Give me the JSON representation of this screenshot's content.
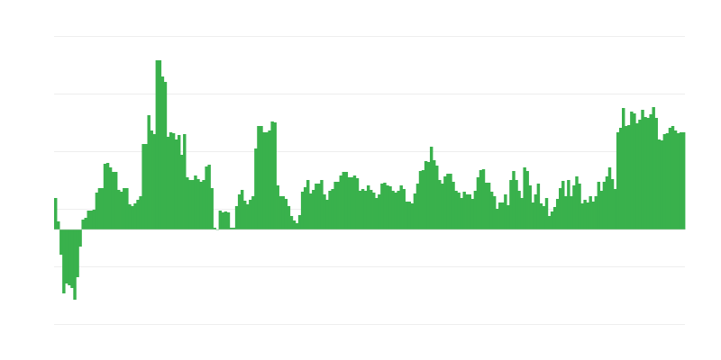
{
  "chart_data": {
    "type": "bar",
    "title": "",
    "xlabel": "",
    "ylabel": "",
    "ylim": [
      -105,
      215
    ],
    "gridlines": [
      -105,
      -41,
      23,
      87,
      151,
      215
    ],
    "grid": true,
    "legend": "none",
    "colors": {
      "bar": "#39b14c",
      "grid": "#eeeeee",
      "baseline": "#cccccc"
    },
    "values": [
      35,
      9,
      -28,
      -71,
      -60,
      -62,
      -65,
      -78,
      -53,
      -19,
      11,
      13,
      21,
      21,
      22,
      41,
      46,
      46,
      73,
      74,
      69,
      64,
      64,
      44,
      42,
      46,
      46,
      28,
      26,
      29,
      33,
      37,
      95,
      95,
      127,
      110,
      106,
      188,
      188,
      170,
      164,
      103,
      108,
      107,
      100,
      105,
      83,
      106,
      58,
      55,
      55,
      60,
      56,
      53,
      55,
      70,
      72,
      46,
      2,
      0,
      21,
      19,
      20,
      19,
      2,
      2,
      26,
      39,
      44,
      32,
      28,
      33,
      37,
      90,
      115,
      115,
      108,
      108,
      110,
      120,
      119,
      49,
      37,
      37,
      34,
      26,
      15,
      10,
      7,
      16,
      42,
      47,
      55,
      40,
      44,
      51,
      51,
      55,
      39,
      33,
      43,
      45,
      53,
      53,
      60,
      64,
      64,
      58,
      58,
      60,
      57,
      43,
      45,
      43,
      49,
      44,
      41,
      35,
      39,
      51,
      52,
      49,
      48,
      43,
      41,
      43,
      49,
      45,
      31,
      31,
      29,
      40,
      51,
      65,
      66,
      76,
      75,
      92,
      77,
      71,
      55,
      51,
      59,
      62,
      62,
      53,
      43,
      41,
      35,
      42,
      39,
      39,
      34,
      43,
      58,
      66,
      67,
      52,
      52,
      42,
      37,
      23,
      30,
      30,
      39,
      27,
      55,
      65,
      55,
      43,
      35,
      69,
      65,
      49,
      30,
      39,
      51,
      29,
      26,
      35,
      15,
      20,
      25,
      34,
      46,
      54,
      37,
      55,
      37,
      49,
      59,
      51,
      29,
      33,
      30,
      37,
      31,
      37,
      53,
      43,
      53,
      59,
      69,
      56,
      45,
      108,
      113,
      135,
      115,
      116,
      131,
      129,
      118,
      122,
      133,
      125,
      124,
      128,
      136,
      124,
      100,
      99,
      106,
      107,
      113,
      115,
      110,
      107,
      108,
      108
    ]
  }
}
